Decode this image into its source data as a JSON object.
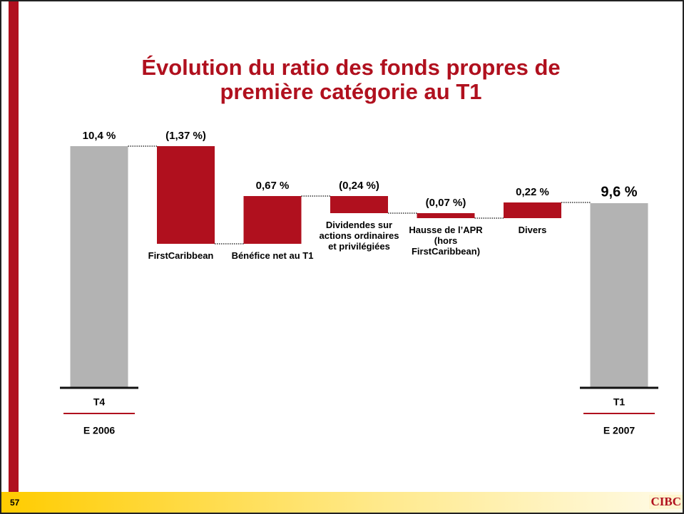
{
  "chart_data": {
    "type": "waterfall",
    "title": "Évolution du ratio des fonds propres de première catégorie au T1",
    "categories": [
      "T4",
      "FirstCaribbean",
      "Bénéfice net au T1",
      "Dividendes sur actions ordinaires et privilégiées",
      "Hausse de l’APR (hors FirstCaribbean)",
      "Divers",
      "T1"
    ],
    "sublabels": [
      "E 2006",
      null,
      null,
      null,
      null,
      null,
      "E 2007"
    ],
    "values": [
      10.4,
      -1.37,
      0.67,
      -0.24,
      -0.07,
      0.22,
      9.6
    ],
    "value_labels": [
      "10,4 %",
      "(1,37 %)",
      "0,67 %",
      "(0,24 %)",
      "(0,07 %)",
      "0,22 %",
      "9,6 %"
    ],
    "totals": [
      true,
      false,
      false,
      false,
      false,
      false,
      true
    ],
    "total_color": "#b3b3b3",
    "color": "#b0101e"
  },
  "footer": {
    "page_number": "57",
    "logo": "CIBC"
  }
}
